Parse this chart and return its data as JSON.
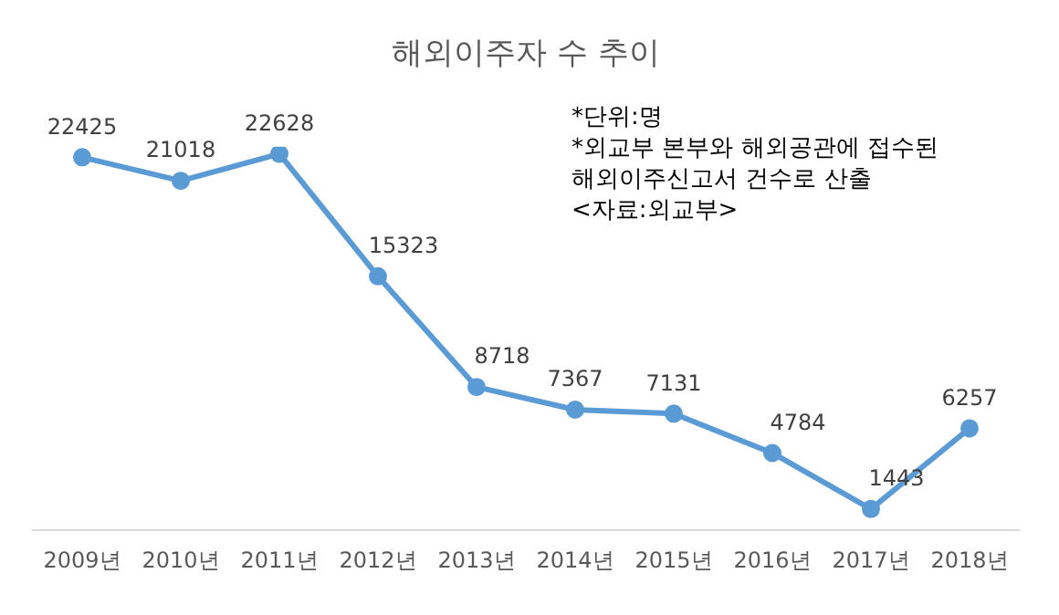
{
  "chart_data": {
    "type": "line",
    "title": "해외이주자 수 추이",
    "categories": [
      "2009년",
      "2010년",
      "2011년",
      "2012년",
      "2013년",
      "2014년",
      "2015년",
      "2016년",
      "2017년",
      "2018년"
    ],
    "series": [
      {
        "color": "#5b9bd5",
        "values": [
          22425,
          21018,
          22628,
          15323,
          8718,
          7367,
          7131,
          4784,
          1443,
          6257
        ]
      }
    ],
    "annotations": [
      "*단위:명",
      "*외교부 본부와 해외공관에 접수된",
      "해외이주신고서 건수로 산출",
      "<자료:외교부>"
    ],
    "data_labels": true,
    "grid": false,
    "legend": false,
    "marker": "circle",
    "line_style": "solid",
    "tick_labels": "x"
  }
}
